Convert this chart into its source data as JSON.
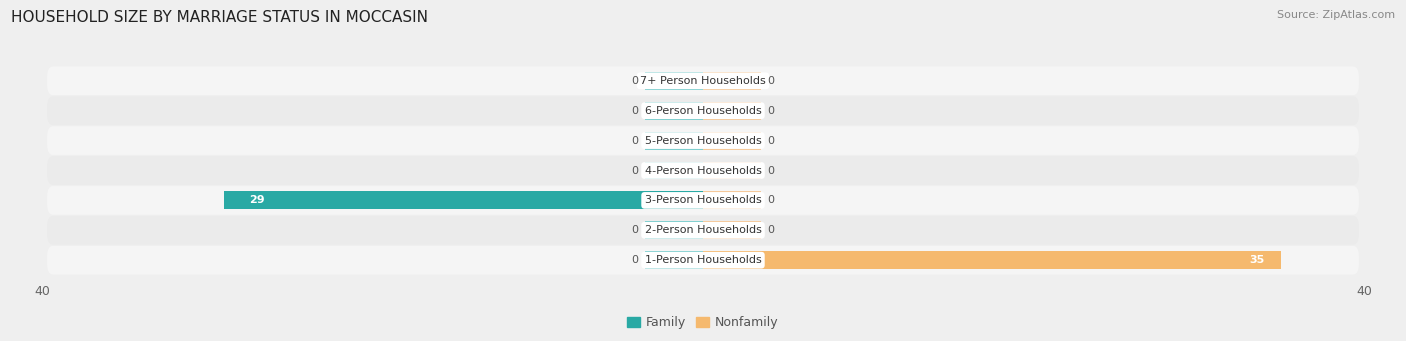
{
  "title": "HOUSEHOLD SIZE BY MARRIAGE STATUS IN MOCCASIN",
  "source": "Source: ZipAtlas.com",
  "categories": [
    "7+ Person Households",
    "6-Person Households",
    "5-Person Households",
    "4-Person Households",
    "3-Person Households",
    "2-Person Households",
    "1-Person Households"
  ],
  "family_values": [
    0,
    0,
    0,
    0,
    29,
    0,
    0
  ],
  "nonfamily_values": [
    0,
    0,
    0,
    0,
    0,
    0,
    35
  ],
  "family_color": "#29a9a4",
  "family_color_stub": "#7ecece",
  "nonfamily_color": "#f5b96e",
  "nonfamily_color_stub": "#f5c99a",
  "xlim_left": -40,
  "xlim_right": 40,
  "stub_size": 3.5,
  "bg_color": "#efefef",
  "row_bg_color": "#f8f8f8",
  "row_alt_color": "#e8e8e8",
  "title_fontsize": 11,
  "source_fontsize": 8,
  "bar_label_fontsize": 8,
  "cat_label_fontsize": 8,
  "tick_fontsize": 9,
  "legend_family_color": "#29a9a4",
  "legend_nonfamily_color": "#f5b96e"
}
